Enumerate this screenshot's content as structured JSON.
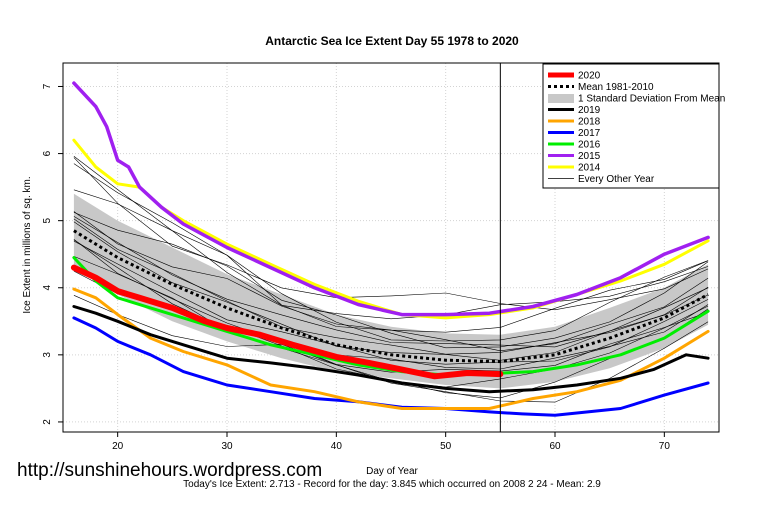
{
  "chart_data": {
    "type": "line",
    "title": "Antarctic Sea Ice Extent Day 55 1978 to 2020",
    "xlabel": "Day of Year",
    "ylabel": "Ice Extent in millions of sq. km.",
    "xlim": [
      15,
      75
    ],
    "ylim": [
      1.85,
      7.35
    ],
    "x_ticks": [
      20,
      30,
      40,
      50,
      60,
      70
    ],
    "y_ticks": [
      2,
      3,
      4,
      5,
      6,
      7
    ],
    "grid": true,
    "vertical_marker_day": 55,
    "legend_position": "top-right",
    "legend": [
      "2020",
      "Mean 1981-2010",
      "1 Standard Deviation From Mean",
      "2019",
      "2018",
      "2017",
      "2016",
      "2015",
      "2014",
      "Every Other Year"
    ],
    "footer": "Today's Ice Extent: 2.713  - Record for the day: 3.845 which occurred on 2008 2 24  - Mean: 2.9",
    "watermark": "http://sunshinehours.wordpress.com",
    "colors": {
      "2020": "#ff0000",
      "2019": "#000000",
      "2018": "#ffa500",
      "2017": "#0000ff",
      "2016": "#00ee00",
      "2015": "#a020f0",
      "2014": "#ffff00",
      "mean": "#000000",
      "std_band": "#c8c8c8",
      "other": "#000000"
    },
    "mean_series": {
      "x": [
        16,
        20,
        25,
        30,
        35,
        40,
        45,
        50,
        55,
        60,
        65,
        70,
        74
      ],
      "y": [
        4.85,
        4.45,
        4.05,
        3.7,
        3.4,
        3.15,
        3.0,
        2.92,
        2.9,
        3.0,
        3.25,
        3.55,
        3.9
      ]
    },
    "std_band": {
      "x": [
        16,
        20,
        25,
        30,
        35,
        40,
        45,
        50,
        55,
        60,
        65,
        70,
        74
      ],
      "upper": [
        5.4,
        5.0,
        4.6,
        4.2,
        3.9,
        3.6,
        3.42,
        3.32,
        3.3,
        3.42,
        3.7,
        4.0,
        4.35
      ],
      "lower": [
        4.3,
        3.9,
        3.5,
        3.2,
        2.95,
        2.75,
        2.65,
        2.55,
        2.5,
        2.6,
        2.8,
        3.1,
        3.45
      ]
    },
    "series": [
      {
        "name": "2020",
        "x": [
          16,
          18,
          20,
          22,
          25,
          28,
          30,
          33,
          36,
          40,
          43,
          46,
          49,
          52,
          55
        ],
        "y": [
          4.3,
          4.15,
          3.95,
          3.85,
          3.7,
          3.5,
          3.4,
          3.3,
          3.15,
          2.97,
          2.88,
          2.78,
          2.68,
          2.73,
          2.713
        ]
      },
      {
        "name": "2019",
        "x": [
          16,
          18,
          20,
          23,
          26,
          30,
          34,
          38,
          42,
          46,
          50,
          54,
          58,
          62,
          66,
          69,
          72,
          74
        ],
        "y": [
          3.72,
          3.62,
          3.5,
          3.3,
          3.15,
          2.95,
          2.88,
          2.8,
          2.7,
          2.58,
          2.5,
          2.45,
          2.48,
          2.55,
          2.65,
          2.78,
          3.0,
          2.95
        ]
      },
      {
        "name": "2018",
        "x": [
          16,
          18,
          20,
          23,
          26,
          30,
          34,
          38,
          42,
          46,
          50,
          54,
          58,
          62,
          66,
          70,
          74
        ],
        "y": [
          3.98,
          3.85,
          3.6,
          3.25,
          3.05,
          2.85,
          2.55,
          2.45,
          2.3,
          2.2,
          2.2,
          2.2,
          2.35,
          2.45,
          2.62,
          2.95,
          3.35
        ]
      },
      {
        "name": "2017",
        "x": [
          16,
          18,
          20,
          23,
          26,
          30,
          34,
          38,
          42,
          46,
          50,
          54,
          57,
          60,
          63,
          66,
          70,
          74
        ],
        "y": [
          3.55,
          3.4,
          3.2,
          3.0,
          2.75,
          2.55,
          2.45,
          2.35,
          2.3,
          2.22,
          2.2,
          2.15,
          2.12,
          2.1,
          2.15,
          2.2,
          2.4,
          2.58
        ]
      },
      {
        "name": "2016",
        "x": [
          16,
          18,
          20,
          23,
          26,
          30,
          34,
          38,
          42,
          46,
          50,
          54,
          58,
          62,
          66,
          70,
          74
        ],
        "y": [
          4.45,
          4.1,
          3.85,
          3.7,
          3.55,
          3.35,
          3.15,
          3.0,
          2.85,
          2.75,
          2.7,
          2.72,
          2.75,
          2.85,
          3.0,
          3.25,
          3.65
        ]
      },
      {
        "name": "2015",
        "x": [
          16,
          18,
          19,
          20,
          21,
          22,
          24,
          26,
          30,
          34,
          38,
          42,
          46,
          50,
          54,
          58,
          62,
          66,
          70,
          74
        ],
        "y": [
          7.05,
          6.7,
          6.4,
          5.9,
          5.8,
          5.5,
          5.2,
          4.95,
          4.6,
          4.3,
          4.0,
          3.75,
          3.6,
          3.6,
          3.62,
          3.72,
          3.9,
          4.15,
          4.5,
          4.75
        ]
      },
      {
        "name": "2014",
        "x": [
          16,
          18,
          20,
          22,
          24,
          26,
          30,
          34,
          38,
          42,
          46,
          50,
          54,
          58,
          62,
          66,
          70,
          74
        ],
        "y": [
          6.2,
          5.8,
          5.55,
          5.5,
          5.2,
          5.0,
          4.65,
          4.35,
          4.05,
          3.8,
          3.6,
          3.55,
          3.6,
          3.7,
          3.9,
          4.1,
          4.35,
          4.7
        ]
      }
    ]
  }
}
